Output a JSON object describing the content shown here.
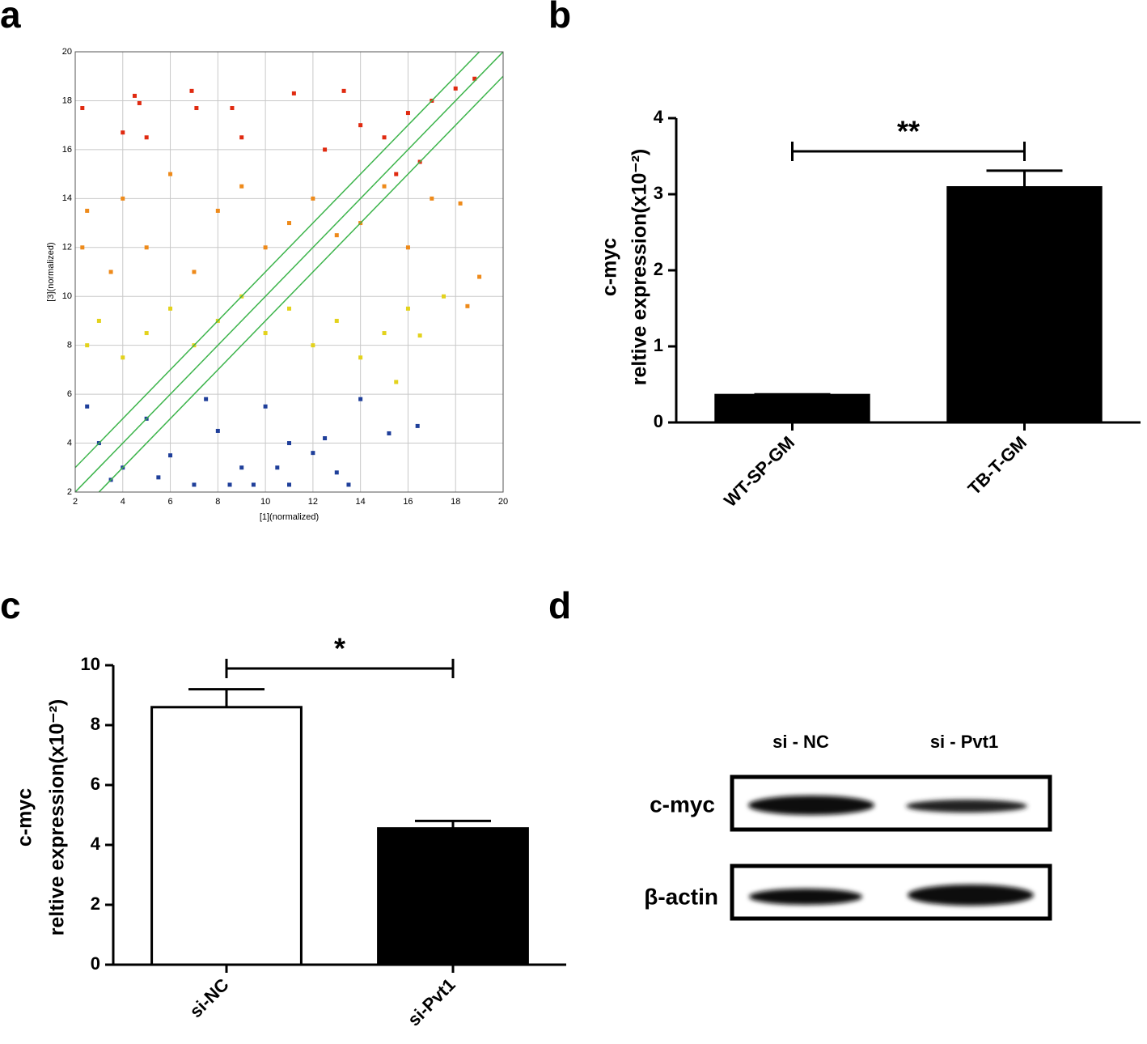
{
  "chart_data": [
    {
      "type": "scatter",
      "panel": "a",
      "xlabel": "[1](normalized)",
      "ylabel": "[3](normalized)",
      "xlim": [
        2,
        20
      ],
      "ylim": [
        2,
        20
      ],
      "xticks": [
        2,
        4,
        6,
        8,
        10,
        12,
        14,
        16,
        18,
        20
      ],
      "yticks": [
        2,
        4,
        6,
        8,
        10,
        12,
        14,
        16,
        18,
        20
      ],
      "grid": true,
      "diagonals": [
        -1,
        0,
        1
      ],
      "diagonal_color": "#3cb44b",
      "series": [
        {
          "color": "#1f3f9a",
          "x": [
            2.5,
            3,
            4,
            5,
            6,
            7,
            8,
            9,
            10,
            11,
            12,
            13,
            13.5,
            15.2,
            16.4,
            11,
            9.5,
            12.5,
            3.5,
            7.5,
            10.5,
            14,
            5.5,
            8.5
          ],
          "y": [
            5.5,
            4,
            3,
            5,
            3.5,
            2.3,
            4.5,
            3,
            5.5,
            4,
            3.6,
            2.8,
            2.3,
            4.4,
            4.7,
            2.3,
            2.3,
            4.2,
            2.5,
            5.8,
            3,
            5.8,
            2.6,
            2.3
          ]
        },
        {
          "color": "#e3d21c",
          "x": [
            2.5,
            3,
            4,
            5,
            6,
            7,
            8,
            9,
            10,
            11,
            12,
            13,
            14,
            15,
            16,
            17.5,
            15.5,
            16.5
          ],
          "y": [
            8,
            9,
            7.5,
            8.5,
            9.5,
            8,
            9,
            10,
            8.5,
            9.5,
            8,
            9,
            7.5,
            8.5,
            9.5,
            10,
            6.5,
            8.4
          ]
        },
        {
          "color": "#ee8a1a",
          "x": [
            2.3,
            2.5,
            3.5,
            4,
            5,
            6,
            7,
            8,
            9,
            10,
            11,
            12,
            13,
            14,
            15,
            16,
            17,
            18.2,
            19,
            18.5
          ],
          "y": [
            12,
            13.5,
            11,
            14,
            12,
            15,
            11,
            13.5,
            14.5,
            12,
            13,
            14,
            12.5,
            13,
            14.5,
            12,
            14,
            13.8,
            10.8,
            9.6
          ]
        },
        {
          "color": "#e02a10",
          "x": [
            2.3,
            4.5,
            4.7,
            6.9,
            7.1,
            8.6,
            11.2,
            13.3,
            4,
            5,
            9,
            12.5,
            14,
            15,
            16,
            17,
            18,
            18.8,
            16.5,
            15.5
          ],
          "y": [
            17.7,
            18.2,
            17.9,
            18.4,
            17.7,
            17.7,
            18.3,
            18.4,
            16.7,
            16.5,
            16.5,
            16,
            17,
            16.5,
            17.5,
            18,
            18.5,
            18.9,
            15.5,
            15
          ]
        }
      ]
    },
    {
      "type": "bar",
      "panel": "b",
      "ylabel": [
        "c-myc",
        "reltive expression(x10⁻²)"
      ],
      "categories": [
        "WT-SP-GM",
        "TB-T-GM"
      ],
      "values": [
        0.36,
        3.09
      ],
      "errors": [
        0.01,
        0.22
      ],
      "colors": [
        "#000000",
        "#000000"
      ],
      "ylim": [
        0,
        4
      ],
      "yticks": [
        0,
        1,
        2,
        3,
        4
      ],
      "significance": "**"
    },
    {
      "type": "bar",
      "panel": "c",
      "ylabel": [
        "c-myc",
        "reltive expression(x10⁻²)"
      ],
      "categories": [
        "si-NC",
        "si-Pvt1"
      ],
      "values": [
        8.6,
        4.55
      ],
      "errors": [
        0.6,
        0.25
      ],
      "colors": [
        "#ffffff",
        "#000000"
      ],
      "ylim": [
        0,
        10
      ],
      "yticks": [
        0,
        2,
        4,
        6,
        8,
        10
      ],
      "significance": "*"
    }
  ],
  "blot": {
    "panel": "d",
    "lanes": [
      "si - NC",
      "si - Pvt1"
    ],
    "rows": [
      "c-myc",
      "β-actin"
    ]
  }
}
